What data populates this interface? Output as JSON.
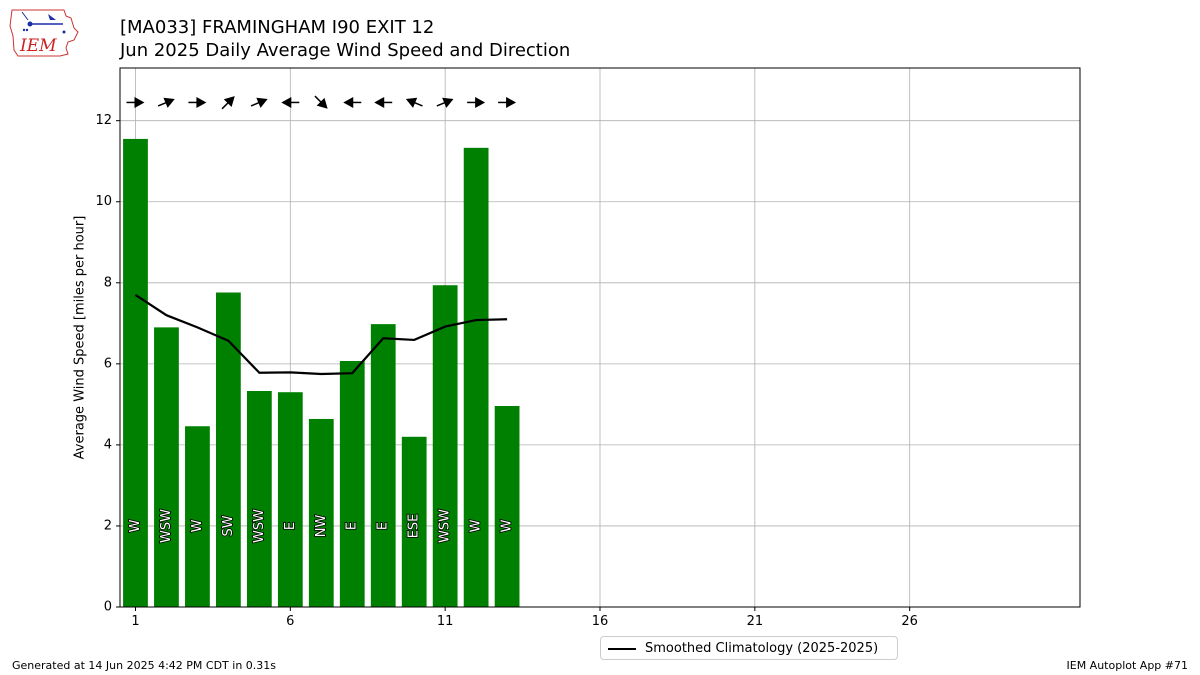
{
  "header": {
    "title_line1": "[MA033] FRAMINGHAM I90 EXIT 12",
    "title_line2": "Jun 2025 Daily Average Wind Speed and Direction",
    "logo_text": "IEM"
  },
  "footer": {
    "left": "Generated at 14 Jun 2025 4:42 PM CDT in 0.31s",
    "right": "IEM Autoplot App #71"
  },
  "legend": {
    "label": "Smoothed Climatology (2025-2025)"
  },
  "colors": {
    "bar": "#008000",
    "climo_line": "#000000",
    "grid": "#b0b0b0"
  },
  "chart_data": {
    "type": "bar",
    "ylabel": "Average Wind Speed [miles per hour]",
    "xlim": [
      0.5,
      31.5
    ],
    "ylim": [
      0,
      13.3
    ],
    "x_ticks": [
      1,
      6,
      11,
      16,
      21,
      26
    ],
    "y_ticks": [
      0,
      2,
      4,
      6,
      8,
      10,
      12
    ],
    "grid": true,
    "legend_position": "below",
    "days": [
      1,
      2,
      3,
      4,
      5,
      6,
      7,
      8,
      9,
      10,
      11,
      12,
      13
    ],
    "values": [
      11.55,
      6.9,
      4.46,
      7.76,
      5.33,
      5.3,
      4.64,
      6.07,
      6.98,
      4.2,
      7.94,
      11.33,
      4.96
    ],
    "directions": [
      "W",
      "WSW",
      "W",
      "SW",
      "WSW",
      "E",
      "NW",
      "E",
      "E",
      "ESE",
      "WSW",
      "W",
      "W"
    ],
    "arrow_bearings_deg": [
      270,
      247.5,
      270,
      225,
      247.5,
      90,
      315,
      90,
      90,
      112.5,
      247.5,
      270,
      270
    ],
    "climatology": {
      "name": "Smoothed Climatology (2025-2025)",
      "values": [
        7.7,
        7.2,
        6.9,
        6.57,
        5.78,
        5.79,
        5.75,
        5.77,
        6.63,
        6.59,
        6.92,
        7.08,
        7.1
      ]
    }
  }
}
